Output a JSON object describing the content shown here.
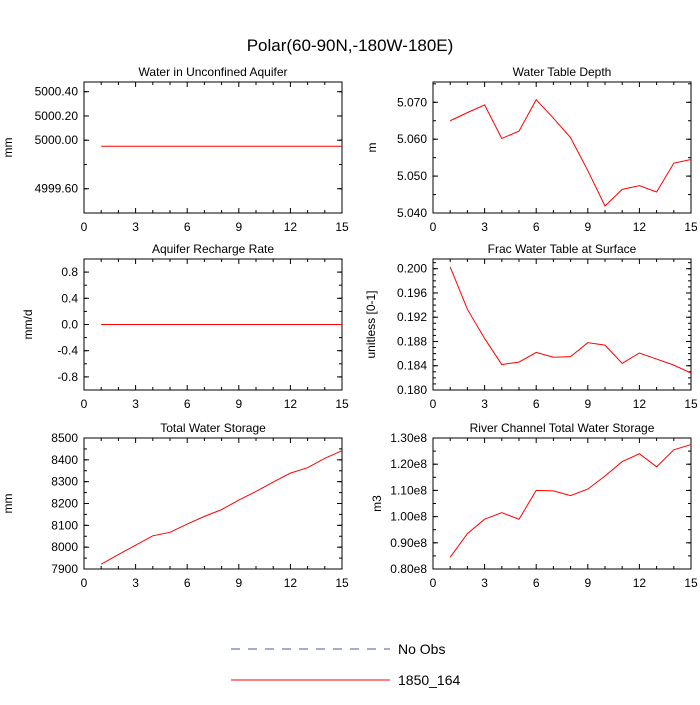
{
  "page_title": "Polar(60-90N,-180W-180E)",
  "colors": {
    "series": "#ff0000",
    "obs": "#4a5aa8",
    "axis": "#000000"
  },
  "legend": {
    "items": [
      {
        "label": "No Obs",
        "style": "dashed",
        "color": "#4a5aa8"
      },
      {
        "label": "1850_164",
        "style": "solid",
        "color": "#ff0000"
      }
    ]
  },
  "chart_data": [
    {
      "id": "water-in-unconfined-aquifer",
      "type": "line",
      "title": "Water in Unconfined Aquifer",
      "xlabel": "",
      "ylabel": "mm",
      "xlim": [
        0,
        15
      ],
      "ylim": [
        4999.4,
        5000.48
      ],
      "xticks": [
        0,
        3,
        6,
        9,
        12,
        15
      ],
      "yticks": [
        4999.6,
        5000.0,
        5000.2,
        5000.4
      ],
      "ytick_labels": [
        "4999.60",
        "5000.00",
        "5000.20",
        "5000.40"
      ],
      "series": [
        {
          "name": "1850_164",
          "x": [
            1,
            2,
            3,
            4,
            5,
            6,
            7,
            8,
            9,
            10,
            11,
            12,
            13,
            14,
            15
          ],
          "values": [
            4999.95,
            4999.95,
            4999.95,
            4999.95,
            4999.95,
            4999.95,
            4999.95,
            4999.95,
            4999.95,
            4999.95,
            4999.95,
            4999.95,
            4999.95,
            4999.95,
            4999.95
          ]
        }
      ]
    },
    {
      "id": "water-table-depth",
      "type": "line",
      "title": "Water Table Depth",
      "xlabel": "",
      "ylabel": "m",
      "xlim": [
        0,
        15
      ],
      "ylim": [
        5.04,
        5.0755
      ],
      "xticks": [
        0,
        3,
        6,
        9,
        12,
        15
      ],
      "yticks": [
        5.04,
        5.05,
        5.06,
        5.07
      ],
      "ytick_labels": [
        "5.040",
        "5.050",
        "5.060",
        "5.070"
      ],
      "series": [
        {
          "name": "1850_164",
          "x": [
            1,
            2,
            3,
            4,
            5,
            6,
            7,
            8,
            9,
            10,
            11,
            12,
            13,
            14,
            15
          ],
          "values": [
            5.065,
            5.0672,
            5.0693,
            5.0602,
            5.0622,
            5.0707,
            5.0657,
            5.0604,
            5.0515,
            5.0419,
            5.0464,
            5.0474,
            5.0457,
            5.0535,
            5.0545
          ]
        }
      ]
    },
    {
      "id": "aquifer-recharge-rate",
      "type": "line",
      "title": "Aquifer Recharge Rate",
      "xlabel": "",
      "ylabel": "mm/d",
      "xlim": [
        0,
        15
      ],
      "ylim": [
        -1.0,
        1.0
      ],
      "xticks": [
        0,
        3,
        6,
        9,
        12,
        15
      ],
      "yticks": [
        -0.8,
        -0.4,
        0.0,
        0.4,
        0.8
      ],
      "ytick_labels": [
        "-0.8",
        "-0.4",
        "0.0",
        "0.4",
        "0.8"
      ],
      "series": [
        {
          "name": "1850_164",
          "x": [
            1,
            2,
            3,
            4,
            5,
            6,
            7,
            8,
            9,
            10,
            11,
            12,
            13,
            14,
            15
          ],
          "values": [
            0,
            0,
            0,
            0,
            0,
            0,
            0,
            0,
            0,
            0,
            0,
            0,
            0,
            0,
            0
          ]
        }
      ]
    },
    {
      "id": "frac-water-table-at-surface",
      "type": "line",
      "title": "Frac Water Table at Surface",
      "xlabel": "",
      "ylabel": "unitless [0-1]",
      "xlim": [
        0,
        15
      ],
      "ylim": [
        0.18,
        0.2016
      ],
      "xticks": [
        0,
        3,
        6,
        9,
        12,
        15
      ],
      "yticks": [
        0.18,
        0.184,
        0.188,
        0.192,
        0.196,
        0.2
      ],
      "ytick_labels": [
        "0.180",
        "0.184",
        "0.188",
        "0.192",
        "0.196",
        "0.200"
      ],
      "series": [
        {
          "name": "1850_164",
          "x": [
            1,
            2,
            3,
            4,
            5,
            6,
            7,
            8,
            9,
            10,
            11,
            12,
            13,
            14,
            15
          ],
          "values": [
            0.2003,
            0.1933,
            0.1885,
            0.1842,
            0.1846,
            0.1862,
            0.1854,
            0.1855,
            0.1878,
            0.1874,
            0.1844,
            0.1861,
            0.1851,
            0.1841,
            0.1828
          ]
        }
      ]
    },
    {
      "id": "total-water-storage",
      "type": "line",
      "title": "Total Water Storage",
      "xlabel": "",
      "ylabel": "mm",
      "xlim": [
        0,
        15
      ],
      "ylim": [
        7900,
        8500
      ],
      "xticks": [
        0,
        3,
        6,
        9,
        12,
        15
      ],
      "yticks": [
        7900,
        8000,
        8100,
        8200,
        8300,
        8400,
        8500
      ],
      "ytick_labels": [
        "7900",
        "8000",
        "8100",
        "8200",
        "8300",
        "8400",
        "8500"
      ],
      "series": [
        {
          "name": "1850_164",
          "x": [
            1,
            2,
            3,
            4,
            5,
            6,
            7,
            8,
            9,
            10,
            11,
            12,
            13,
            14,
            15
          ],
          "values": [
            7922,
            7966,
            8009,
            8052,
            8068,
            8106,
            8141,
            8172,
            8216,
            8255,
            8298,
            8339,
            8364,
            8407,
            8442
          ]
        }
      ]
    },
    {
      "id": "river-channel-total-water-storage",
      "type": "line",
      "title": "River Channel Total Water Storage",
      "xlabel": "",
      "ylabel": "m3",
      "xlim": [
        0,
        15
      ],
      "ylim": [
        80000000.0,
        130000000.0
      ],
      "xticks": [
        0,
        3,
        6,
        9,
        12,
        15
      ],
      "yticks": [
        80000000.0,
        90000000.0,
        100000000.0,
        110000000.0,
        120000000.0,
        130000000.0
      ],
      "ytick_labels": [
        "0.80e8",
        "0.90e8",
        "1.00e8",
        "1.10e8",
        "1.20e8",
        "1.30e8"
      ],
      "series": [
        {
          "name": "1850_164",
          "x": [
            1,
            2,
            3,
            4,
            5,
            6,
            7,
            8,
            9,
            10,
            11,
            12,
            13,
            14,
            15
          ],
          "values": [
            84500000.0,
            93500000.0,
            99000000.0,
            101500000.0,
            99000000.0,
            110000000.0,
            109800000.0,
            108000000.0,
            110500000.0,
            115500000.0,
            121000000.0,
            124000000.0,
            119000000.0,
            125500000.0,
            127500000.0
          ]
        }
      ]
    }
  ]
}
